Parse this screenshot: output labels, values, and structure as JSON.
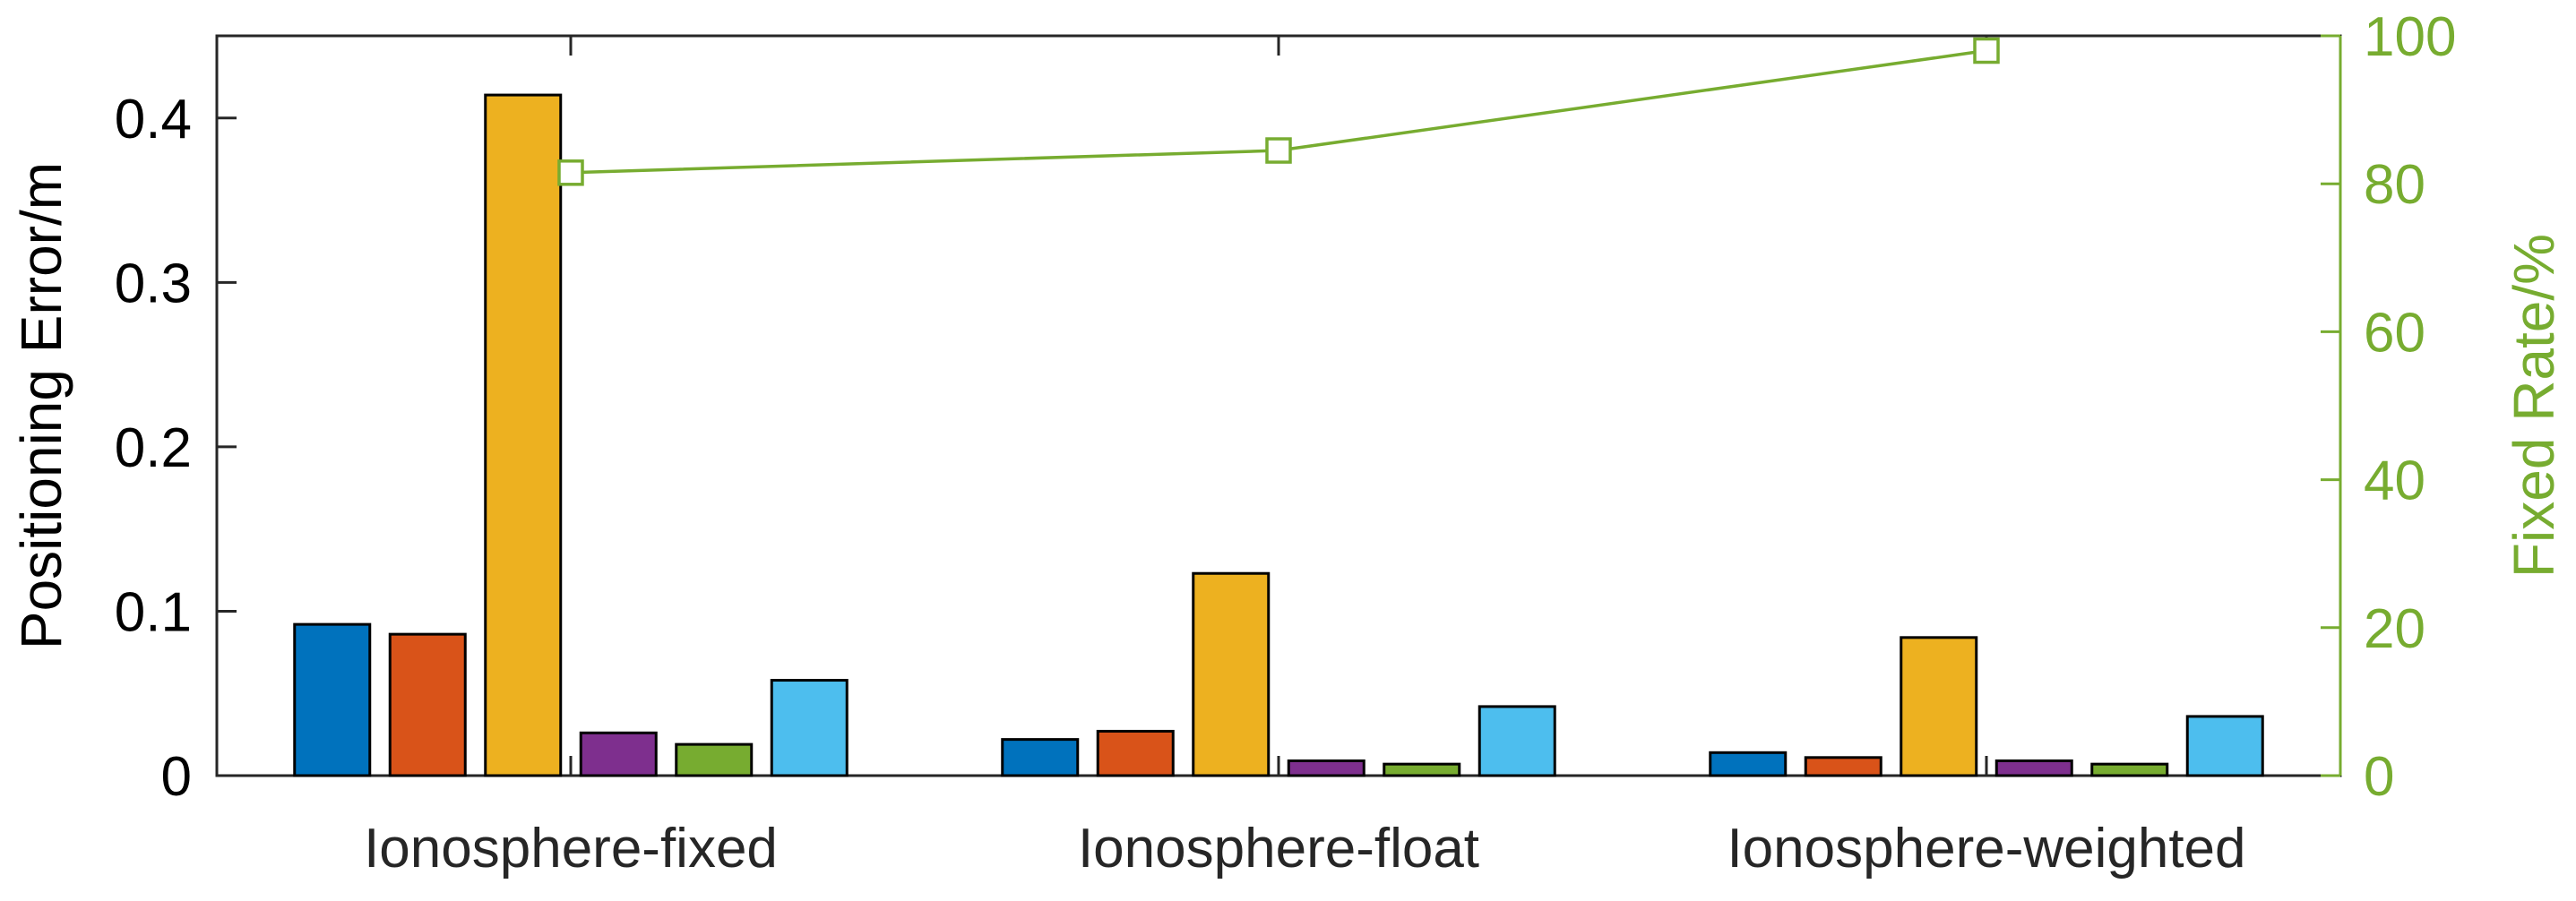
{
  "chart_data": {
    "type": "bar",
    "categories": [
      "Ionosphere-fixed",
      "Ionosphere-float",
      "Ionosphere-weighted"
    ],
    "series": [
      {
        "color": "#0072BD",
        "values": [
          0.092,
          0.022,
          0.014
        ]
      },
      {
        "color": "#D95319",
        "values": [
          0.086,
          0.027,
          0.011
        ]
      },
      {
        "color": "#EDB120",
        "values": [
          0.414,
          0.123,
          0.084
        ]
      },
      {
        "color": "#7E2F8E",
        "values": [
          0.026,
          0.009,
          0.009
        ]
      },
      {
        "color": "#77AC30",
        "values": [
          0.019,
          0.007,
          0.007
        ]
      },
      {
        "color": "#4DBEEE",
        "values": [
          0.058,
          0.042,
          0.036
        ]
      }
    ],
    "line": {
      "color": "#77AC30",
      "values": [
        81.5,
        84.5,
        98.0
      ]
    },
    "ylabel": "Positioning Error/m",
    "ylim": [
      0,
      0.45
    ],
    "yticks": [
      "0",
      "0.1",
      "0.2",
      "0.3",
      "0.4"
    ],
    "y2label": "Fixed Rate/%",
    "y2lim": [
      0,
      100
    ],
    "y2ticks": [
      "0",
      "20",
      "40",
      "60",
      "80",
      "100"
    ],
    "y2color": "#77AC30",
    "grid": false,
    "legend": "none"
  }
}
